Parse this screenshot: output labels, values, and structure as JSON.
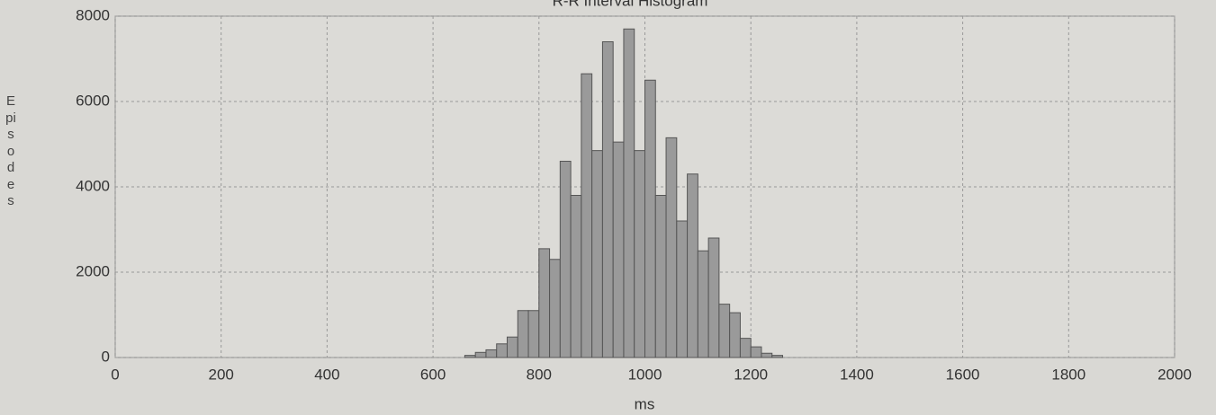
{
  "chart_data": {
    "type": "histogram",
    "title": "R-R Interval Histogram",
    "x_label": "ms",
    "y_label": "Episodes",
    "bins": [
      660,
      680,
      700,
      720,
      740,
      760,
      780,
      800,
      820,
      840,
      860,
      880,
      900,
      920,
      940,
      960,
      980,
      1000,
      1020,
      1040,
      1060,
      1080,
      1100,
      1120,
      1140,
      1160,
      1180,
      1200,
      1220,
      1240,
      1260
    ],
    "counts": [
      50,
      120,
      180,
      320,
      480,
      1100,
      1100,
      2550,
      2300,
      4600,
      3800,
      6650,
      4850,
      7400,
      5050,
      7700,
      4850,
      6500,
      3800,
      5150,
      3200,
      4300,
      2500,
      2800,
      1250,
      1050,
      450,
      250,
      100,
      50
    ],
    "color": "#9a9a9a",
    "xlim": [
      0,
      2000
    ],
    "xticks": [
      0,
      200,
      400,
      600,
      800,
      1000,
      1200,
      1400,
      1600,
      1800,
      2000
    ],
    "ylim": [
      0,
      8000
    ],
    "yticks": [
      0,
      2000,
      4000,
      6000,
      8000
    ],
    "grid": true
  }
}
